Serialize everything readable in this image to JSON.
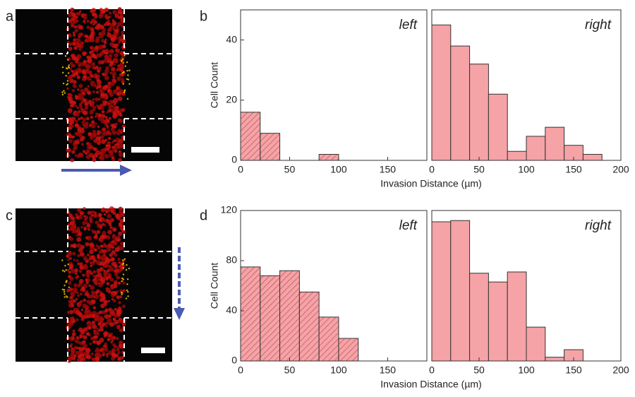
{
  "panel_labels": [
    "a",
    "b",
    "c",
    "d"
  ],
  "chart_data": [
    {
      "type": "histogram",
      "bins": [
        0,
        20,
        40,
        60,
        80,
        100
      ],
      "values": [
        16,
        9,
        0,
        0,
        2
      ],
      "color": "#f5a3a6",
      "hatch": true,
      "label": "left",
      "ylabel": "Cell Count",
      "xlabel": "Invasion Distance (µm)",
      "xlim": [
        0,
        190
      ],
      "ylim": [
        0,
        50
      ],
      "xticks": [
        0,
        50,
        100,
        150
      ],
      "yticks": [
        0,
        20,
        40
      ]
    },
    {
      "type": "histogram",
      "bins": [
        0,
        20,
        40,
        60,
        80,
        100,
        120,
        140,
        160,
        180
      ],
      "values": [
        45,
        38,
        32,
        22,
        3,
        8,
        11,
        5,
        2
      ],
      "color": "#f5a3a6",
      "hatch": false,
      "label": "right",
      "xlim": [
        0,
        200
      ],
      "ylim": [
        0,
        50
      ],
      "xticks": [
        0,
        50,
        100,
        150,
        200
      ]
    },
    {
      "type": "histogram",
      "bins": [
        0,
        20,
        40,
        60,
        80,
        100,
        120
      ],
      "values": [
        75,
        68,
        72,
        55,
        35,
        18
      ],
      "color": "#f5a3a6",
      "hatch": true,
      "label": "left",
      "ylabel": "Cell Count",
      "xlabel": "Invasion Distance (µm)",
      "xlim": [
        0,
        190
      ],
      "ylim": [
        0,
        120
      ],
      "xticks": [
        0,
        50,
        100,
        150
      ],
      "yticks": [
        0,
        40,
        80,
        120
      ]
    },
    {
      "type": "histogram",
      "bins": [
        0,
        20,
        40,
        60,
        80,
        100,
        120,
        140,
        160
      ],
      "values": [
        111,
        112,
        70,
        63,
        71,
        27,
        3,
        9
      ],
      "color": "#f5a3a6",
      "hatch": false,
      "label": "right",
      "xlim": [
        0,
        200
      ],
      "ylim": [
        0,
        120
      ],
      "xticks": [
        0,
        50,
        100,
        150,
        200
      ]
    }
  ]
}
